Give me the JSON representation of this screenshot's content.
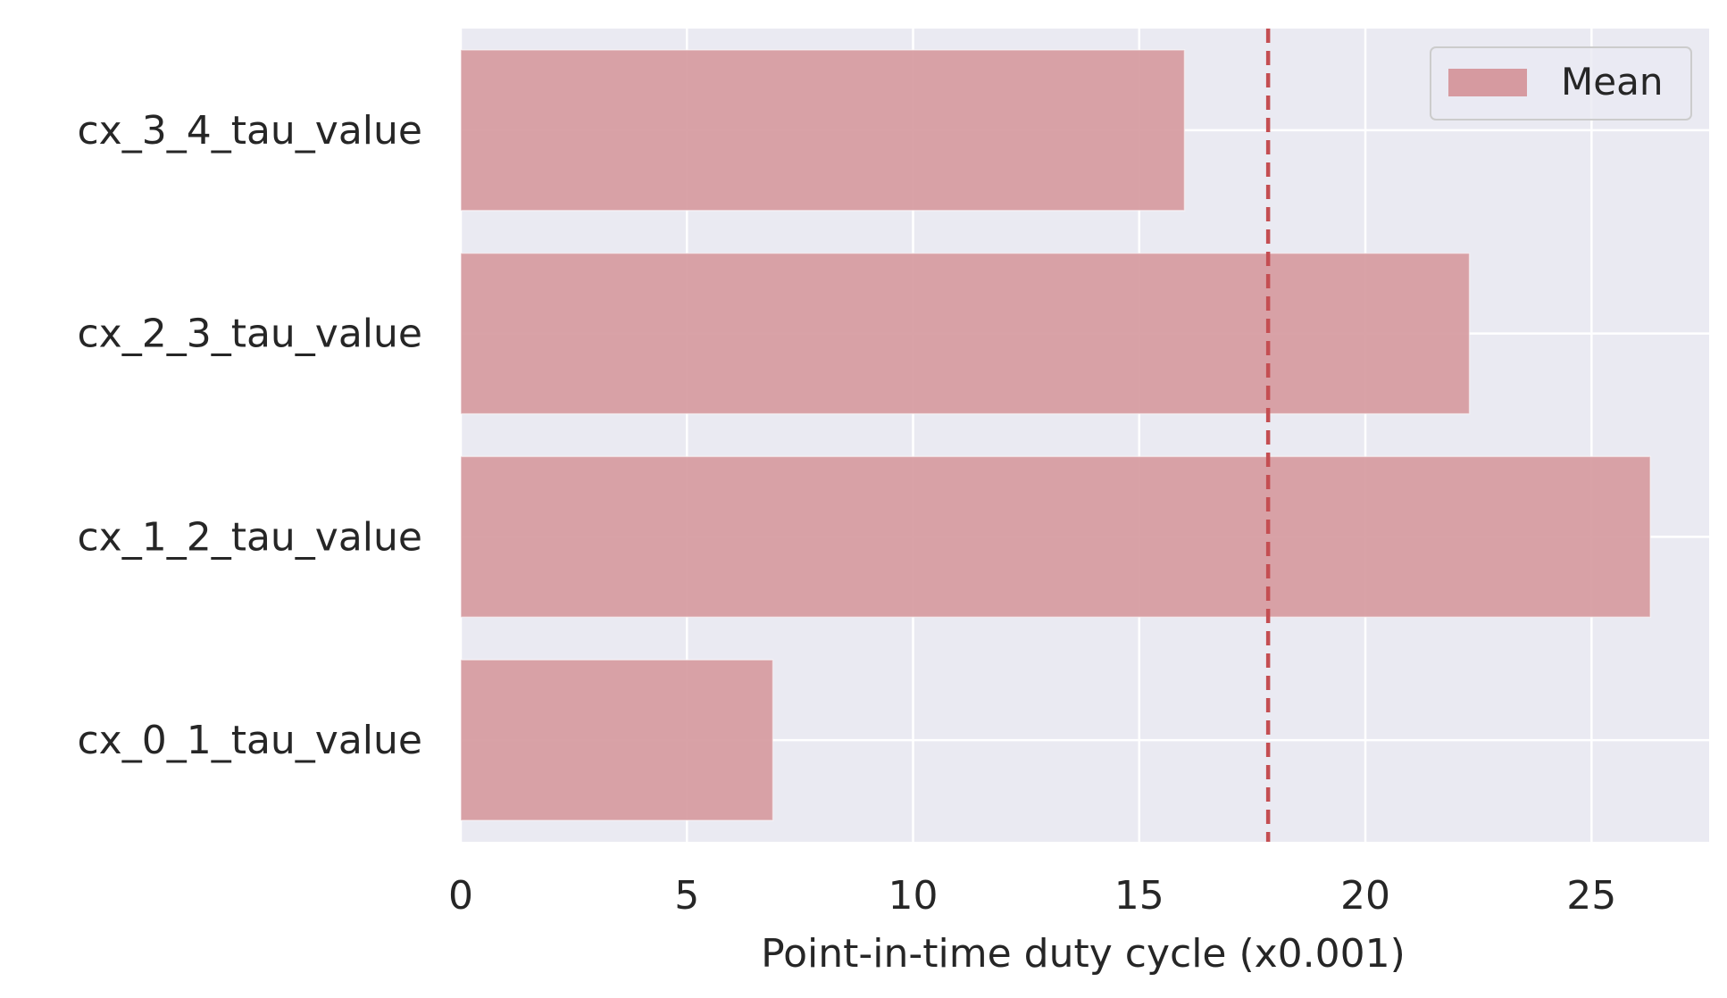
{
  "chart_data": {
    "type": "bar",
    "orientation": "horizontal",
    "categories": [
      "cx_0_1_tau_value",
      "cx_1_2_tau_value",
      "cx_2_3_tau_value",
      "cx_3_4_tau_value"
    ],
    "values": [
      6.9,
      26.3,
      22.3,
      16.0
    ],
    "mean_line": 17.85,
    "xlim": [
      0,
      27.6
    ],
    "xticks": [
      "0",
      "5",
      "10",
      "15",
      "20",
      "25"
    ],
    "xlabel": "Point-in-time duty cycle  (x0.001)",
    "ylabel": "",
    "title": "",
    "legend": {
      "entries": [
        "Mean"
      ],
      "placement": "top-right"
    },
    "grid": true,
    "colors": {
      "bar": "#d69aa0",
      "mean_line": "#c44e52",
      "background": "#eaeaf2",
      "grid": "#ffffff"
    }
  }
}
